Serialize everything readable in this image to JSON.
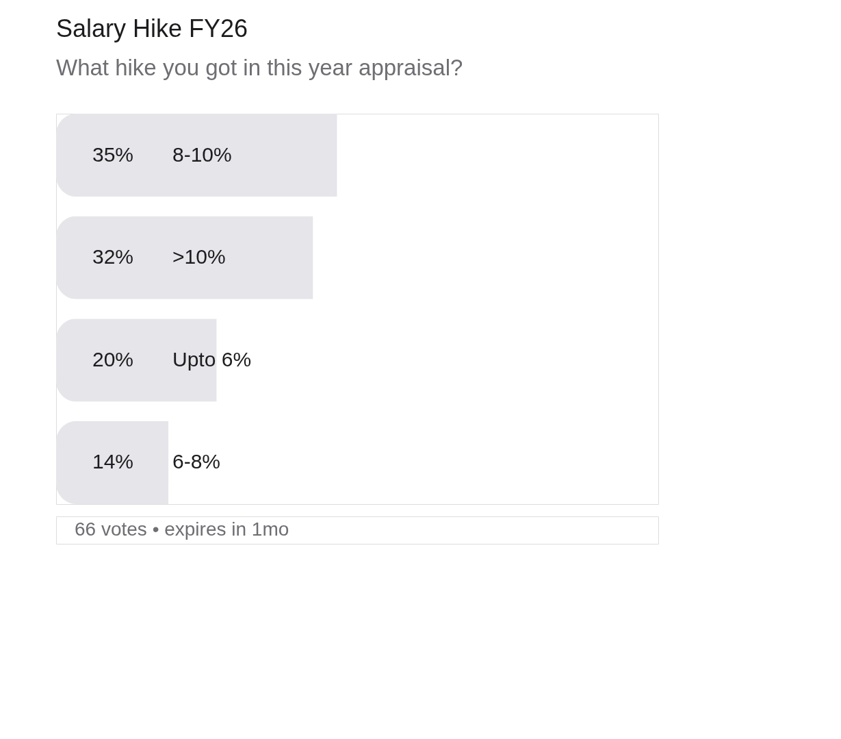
{
  "chart_data": {
    "type": "bar",
    "orientation": "horizontal",
    "title": "Salary Hike FY26",
    "subtitle": "What hike you got in this year appraisal?",
    "categories": [
      "8-10%",
      ">10%",
      "Upto 6%",
      "6-8%"
    ],
    "values": [
      35,
      32,
      20,
      14
    ],
    "value_labels": [
      "35%",
      "32%",
      "20%",
      "14%"
    ],
    "color": "#e5e5ea",
    "xlim": [
      0,
      75
    ],
    "tick_labels": false,
    "annotations": [
      "66 votes • expires in 1mo"
    ]
  }
}
